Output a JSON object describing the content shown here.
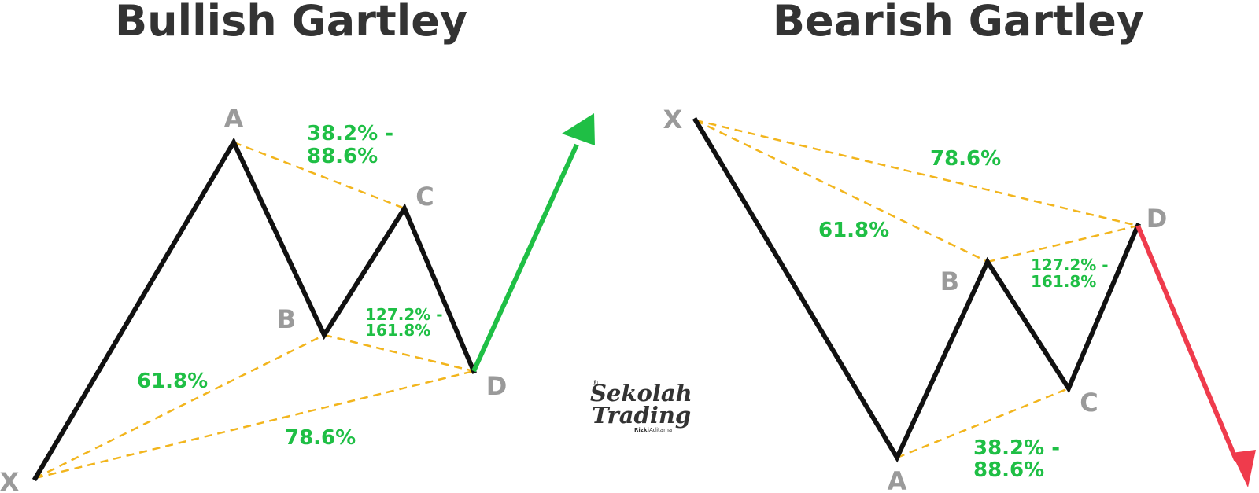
{
  "bullish": {
    "title": "Bullish Gartley",
    "labels": {
      "x": "X",
      "a": "A",
      "b": "B",
      "c": "C",
      "d": "D"
    },
    "ratio_xb": "61.8%",
    "ratio_xd": "78.6%",
    "ratio_ac_line1": "38.2% -",
    "ratio_ac_line2": "88.6%",
    "ratio_bd_line1": "127.2% -",
    "ratio_bd_line2": "161.8%"
  },
  "bearish": {
    "title": "Bearish Gartley",
    "labels": {
      "x": "X",
      "a": "A",
      "b": "B",
      "c": "C",
      "d": "D"
    },
    "ratio_xb": "61.8%",
    "ratio_xd": "78.6%",
    "ratio_ac_line1": "38.2% -",
    "ratio_ac_line2": "88.6%",
    "ratio_bd_line1": "127.2% -",
    "ratio_bd_line2": "161.8%"
  },
  "colors": {
    "legs": "#111111",
    "fib_lines": "#f2b51d",
    "ratios": "#1fbf45",
    "bullish_arrow": "#1fbf45",
    "bearish_arrow": "#ef3b4c",
    "point_labels": "#9a9a9a"
  },
  "logo": {
    "registered": "®",
    "line1": "Sekolah",
    "line2": "Trading",
    "author_first": "Rizki",
    "author_last": "Aditama"
  }
}
